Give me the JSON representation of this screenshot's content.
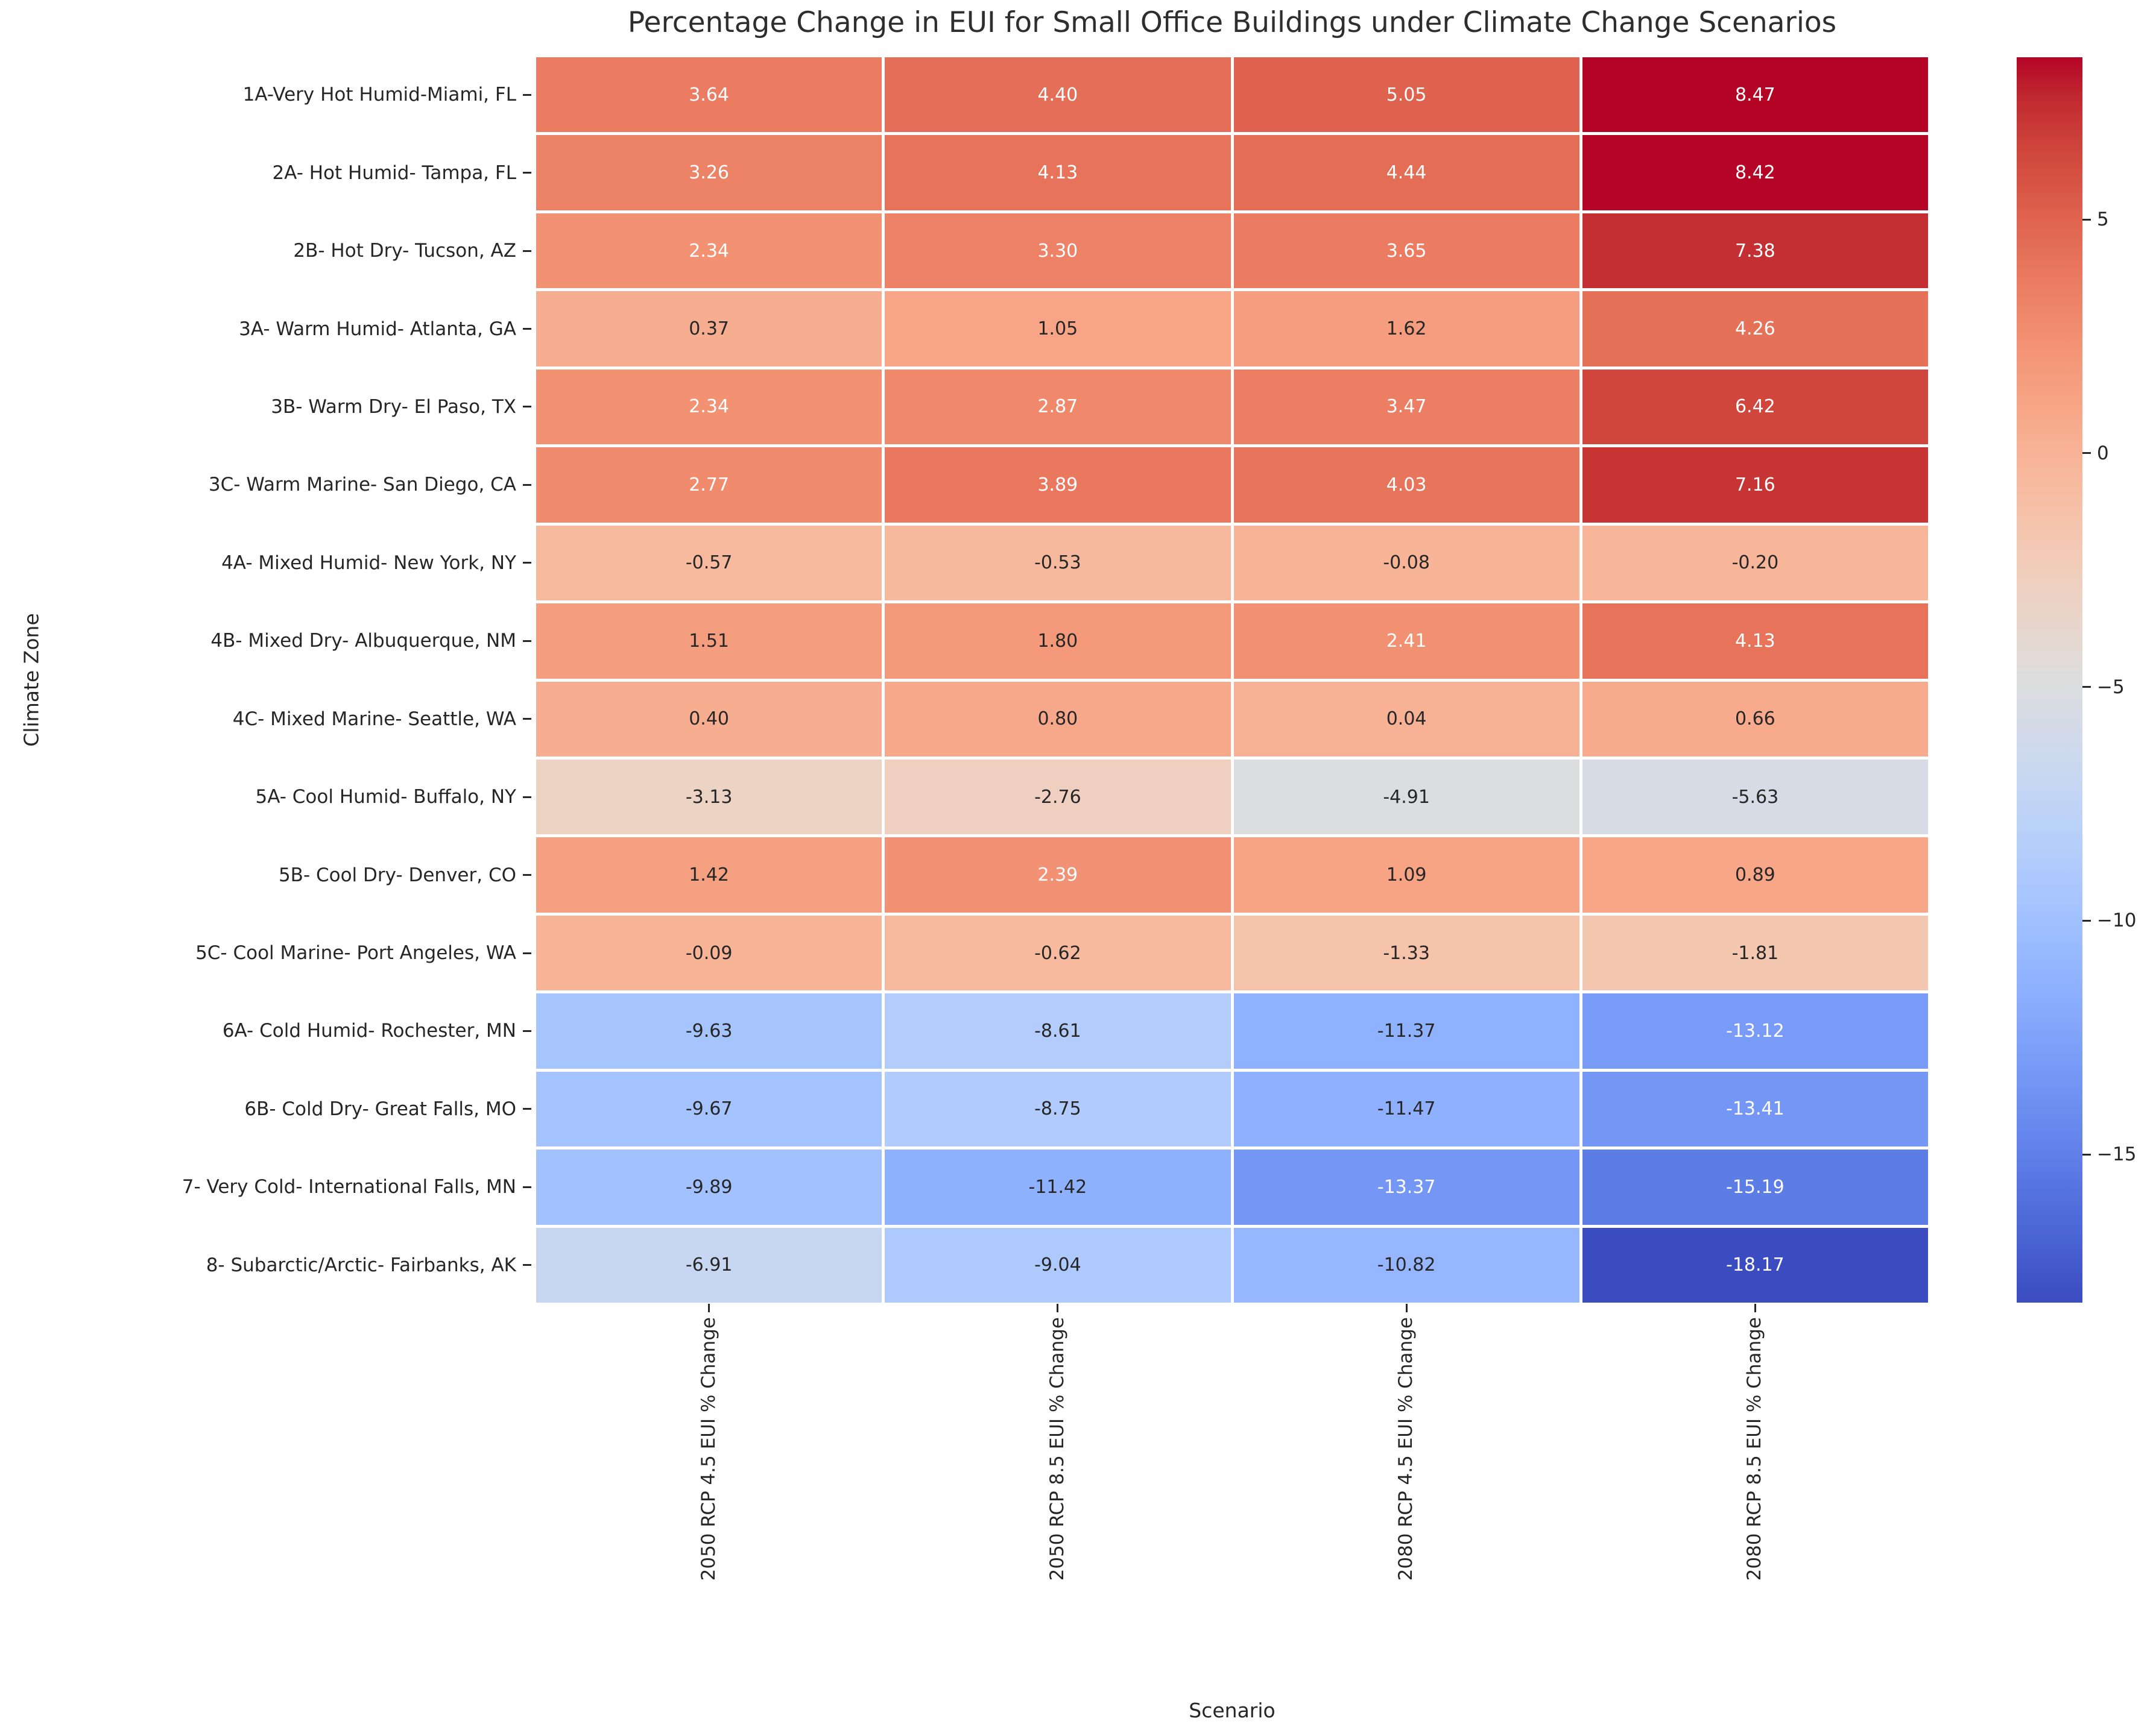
{
  "chart_data": {
    "type": "heatmap",
    "title": "Percentage Change in EUI for Small Office Buildings under Climate Change Scenarios",
    "xlabel": "Scenario",
    "ylabel": "Climate Zone",
    "colormap": "coolwarm",
    "colormap_anchors": {
      "low": "#3b4cc0",
      "mid": "#dddddd",
      "high": "#b40426"
    },
    "background": "#ffffff",
    "text_color": "#262626",
    "annotation_color_on_light": "#262626",
    "annotation_color_on_dark": "#ffffff",
    "grid": false,
    "legend_position": "right-colorbar",
    "vmin": -18.17,
    "vmax": 8.47,
    "colorbar_ticks": [
      5,
      0,
      -5,
      -10,
      -15
    ],
    "value_format": ".2f",
    "columns": [
      "2050 RCP 4.5 EUI % Change",
      "2050 RCP 8.5 EUI % Change",
      "2080 RCP 4.5 EUI % Change",
      "2080 RCP 8.5 EUI % Change"
    ],
    "rows": [
      "1A-Very Hot Humid-Miami, FL",
      "2A- Hot Humid- Tampa, FL",
      "2B- Hot Dry- Tucson, AZ",
      "3A- Warm Humid- Atlanta, GA",
      "3B- Warm Dry- El Paso, TX",
      "3C- Warm Marine- San Diego, CA",
      "4A- Mixed Humid- New York, NY",
      "4B- Mixed Dry- Albuquerque, NM",
      "4C- Mixed Marine- Seattle, WA",
      "5A- Cool Humid- Buffalo, NY",
      "5B- Cool Dry- Denver, CO",
      "5C- Cool Marine- Port Angeles, WA",
      "6A- Cold Humid- Rochester, MN",
      "6B- Cold Dry- Great Falls, MO",
      "7- Very Cold- International Falls, MN",
      "8- Subarctic/Arctic- Fairbanks, AK"
    ],
    "values": [
      [
        3.64,
        4.4,
        5.05,
        8.47
      ],
      [
        3.26,
        4.13,
        4.44,
        8.42
      ],
      [
        2.34,
        3.3,
        3.65,
        7.38
      ],
      [
        0.37,
        1.05,
        1.62,
        4.26
      ],
      [
        2.34,
        2.87,
        3.47,
        6.42
      ],
      [
        2.77,
        3.89,
        4.03,
        7.16
      ],
      [
        -0.57,
        -0.53,
        -0.08,
        -0.2
      ],
      [
        1.51,
        1.8,
        2.41,
        4.13
      ],
      [
        0.4,
        0.8,
        0.04,
        0.66
      ],
      [
        -3.13,
        -2.76,
        -4.91,
        -5.63
      ],
      [
        1.42,
        2.39,
        1.09,
        0.89
      ],
      [
        -0.09,
        -0.62,
        -1.33,
        -1.81
      ],
      [
        -9.63,
        -8.61,
        -11.37,
        -13.12
      ],
      [
        -9.67,
        -8.75,
        -11.47,
        -13.41
      ],
      [
        -9.89,
        -11.42,
        -13.37,
        -15.19
      ],
      [
        -6.91,
        -9.04,
        -10.82,
        -18.17
      ]
    ]
  }
}
